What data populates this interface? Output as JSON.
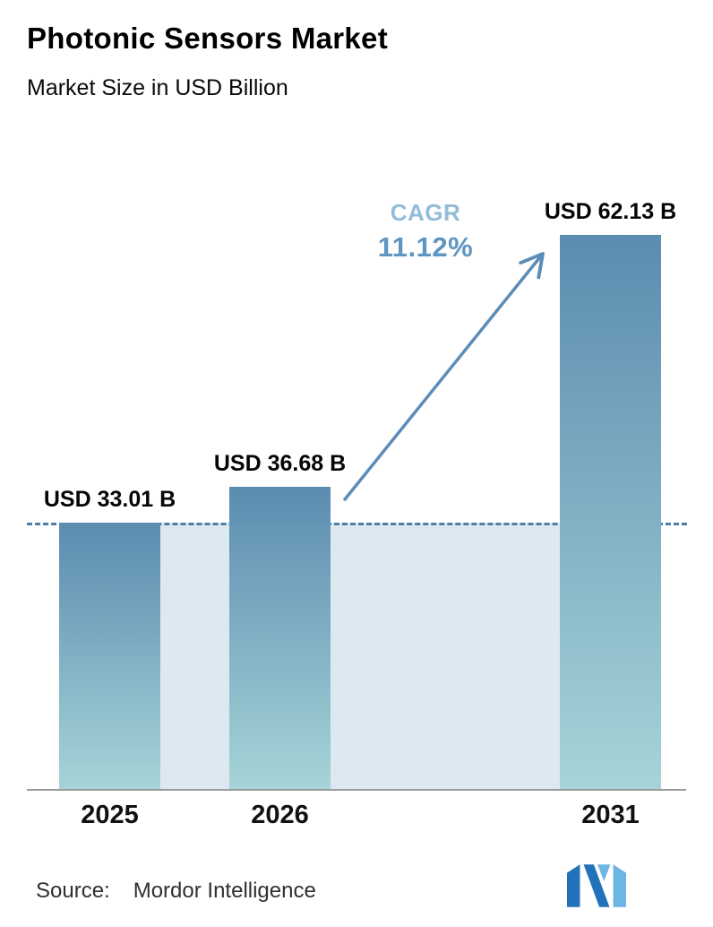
{
  "chart_data": {
    "type": "bar",
    "title": "Photonic Sensors Market",
    "subtitle": "Market Size in USD Billion",
    "unit": "USD Billion",
    "categories": [
      "2025",
      "2026",
      "2031"
    ],
    "values": [
      33.01,
      36.68,
      62.13
    ],
    "bars": [
      {
        "category": "2025",
        "value": 33.01,
        "label": "USD 33.01 B"
      },
      {
        "category": "2026",
        "value": 36.68,
        "label": "USD 36.68 B"
      },
      {
        "category": "2031",
        "value": 62.13,
        "label": "USD 62.13 B"
      }
    ],
    "annotation": {
      "label": "CAGR",
      "value": "11.12%"
    },
    "baseline": {
      "at_value": 33.01,
      "style": "dashed"
    },
    "ylim": [
      6,
      70
    ],
    "grid": false,
    "legend": "none"
  },
  "footer": {
    "source_label": "Source:",
    "source_value": "Mordor Intelligence",
    "logo": "mordor-intelligence-logo"
  },
  "colors": {
    "bar_gradient_top": "#5b8cb0",
    "bar_gradient_bottom": "#a6d4d8",
    "dashed_line": "#4d7fa8",
    "region_fill": "#dde9f1",
    "arrow": "#5b8db8",
    "cagr_label": "#93bcd9",
    "cagr_value": "#5f95c1",
    "axis_line": "#9a9a9a",
    "logo_dark": "#2272b9",
    "logo_light": "#6db6e3"
  }
}
